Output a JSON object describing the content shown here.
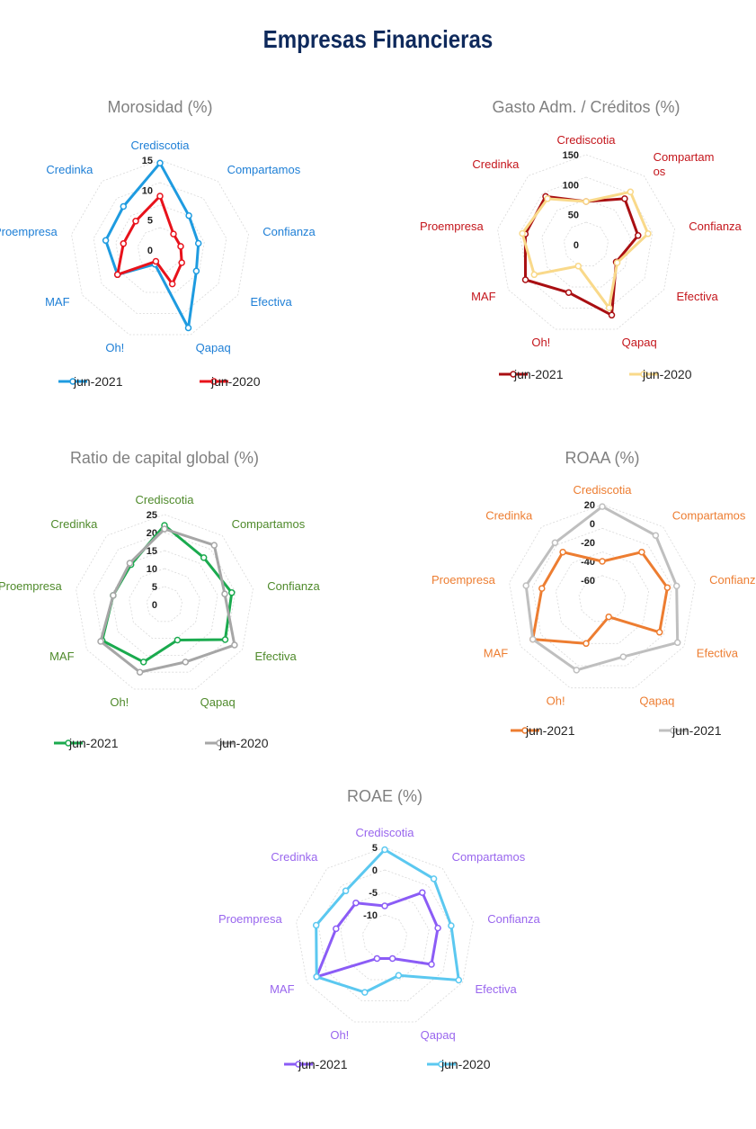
{
  "page_title": "Empresas Financieras",
  "chart_data": [
    {
      "type": "radar",
      "title": "Morosidad (%)",
      "categories": [
        "Crediscotia",
        "Compartamos",
        "Confianza",
        "Efectiva",
        "Qapaq",
        "Oh!",
        "MAF",
        "Proempresa",
        "Credinka"
      ],
      "category_labels": [
        [
          "Crediscotia"
        ],
        [
          "Compartamos"
        ],
        [
          "Confianza"
        ],
        [
          "Efectiva"
        ],
        [
          "Qapaq"
        ],
        [
          "Oh!"
        ],
        [
          "MAF"
        ],
        [
          "Proempresa"
        ],
        [
          "Credinka"
        ]
      ],
      "rmin": 0,
      "rmax": 15,
      "ticks": [
        0,
        5,
        10,
        15
      ],
      "tick_labels": [
        "0",
        "5",
        "10",
        "15"
      ],
      "series": [
        {
          "name": "jun-2021",
          "color": "#1e9be0",
          "values": [
            14.5,
            7.5,
            6.5,
            7.0,
            13.8,
            2.5,
            8.2,
            9.2,
            9.5
          ]
        },
        {
          "name": "jun-2020",
          "color": "#e8121b",
          "values": [
            9.0,
            3.5,
            3.5,
            4.2,
            6.0,
            2.0,
            8.2,
            6.2,
            6.3
          ]
        }
      ],
      "legend": "bottom",
      "label_color": "#1e7fd6"
    },
    {
      "type": "radar",
      "title": "Gasto Adm. / Créditos (%)",
      "categories": [
        "Crediscotia",
        "Compartamos",
        "Confianza",
        "Efectiva",
        "Qapaq",
        "Oh!",
        "MAF",
        "Proempresa",
        "Credinka"
      ],
      "category_labels": [
        [
          "Crediscotia"
        ],
        [
          "Compartam",
          "os"
        ],
        [
          "Confianza"
        ],
        [
          "Efectiva"
        ],
        [
          "Qapaq"
        ],
        [
          "Oh!"
        ],
        [
          "MAF"
        ],
        [
          "Proempresa"
        ],
        [
          "Credinka"
        ]
      ],
      "rmin": 0,
      "rmax": 150,
      "ticks": [
        0,
        50,
        100,
        150
      ],
      "tick_labels": [
        "0",
        "50",
        "100",
        "150"
      ],
      "series": [
        {
          "name": "jun-2021",
          "color": "#a90f12",
          "values": [
            72,
            100,
            88,
            58,
            125,
            85,
            117,
            103,
            105
          ]
        },
        {
          "name": "jun-2020",
          "color": "#f9d98a",
          "values": [
            72,
            115,
            105,
            60,
            112,
            38,
            100,
            108,
            100
          ]
        }
      ],
      "legend": "bottom",
      "label_color": "#c4161c"
    },
    {
      "type": "radar",
      "title": "Ratio de capital global (%)",
      "categories": [
        "Crediscotia",
        "Compartamos",
        "Confianza",
        "Efectiva",
        "Qapaq",
        "Oh!",
        "MAF",
        "Proempresa",
        "Credinka"
      ],
      "category_labels": [
        [
          "Crediscotia"
        ],
        [
          "Compartamos"
        ],
        [
          "Confianza"
        ],
        [
          "Efectiva"
        ],
        [
          "Qapaq"
        ],
        [
          "Oh!"
        ],
        [
          "MAF"
        ],
        [
          "Proempresa"
        ],
        [
          "Credinka"
        ]
      ],
      "rmin": 0,
      "rmax": 25,
      "ticks": [
        0,
        5,
        10,
        15,
        20,
        25
      ],
      "tick_labels": [
        "0",
        "5",
        "10",
        "15",
        "20",
        "25"
      ],
      "series": [
        {
          "name": "jun-2021",
          "color": "#1aaa4e",
          "values": [
            22.0,
            17.0,
            19.0,
            19.5,
            10.5,
            17.0,
            20.0,
            14.5,
            14.5
          ]
        },
        {
          "name": "jun-2020",
          "color": "#a6a6a6",
          "values": [
            21.0,
            21.5,
            17.0,
            22.5,
            17.0,
            20.0,
            20.5,
            14.5,
            15.0
          ]
        }
      ],
      "legend": "bottom",
      "label_color": "#4f8a2b"
    },
    {
      "type": "radar",
      "title": "ROAA (%)",
      "categories": [
        "Crediscotia",
        "Compartamos",
        "Confianza",
        "Efectiva",
        "Qapaq",
        "Oh!",
        "MAF",
        "Proempresa",
        "Credinka"
      ],
      "category_labels": [
        [
          "Crediscotia"
        ],
        [
          "Compartamos"
        ],
        [
          "Confianza"
        ],
        [
          "Efectiva"
        ],
        [
          "Qapaq"
        ],
        [
          "Oh!"
        ],
        [
          "MAF"
        ],
        [
          "Proempresa"
        ],
        [
          "Credinka"
        ]
      ],
      "rmin": -80,
      "rmax": 20,
      "ticks": [
        -60,
        -40,
        -20,
        0,
        20
      ],
      "tick_labels": [
        "-60",
        "-40",
        "-20",
        "0",
        "20"
      ],
      "series": [
        {
          "name": "jun-2021",
          "color": "#ed7d31",
          "values": [
            -40,
            -15,
            -10,
            -10,
            -60,
            -30,
            5,
            -15,
            -15
          ]
        },
        {
          "name": "jun-2021",
          "color": "#bfbfbf",
          "values": [
            18,
            8,
            0,
            12,
            -15,
            0,
            5,
            2,
            -2
          ]
        }
      ],
      "legend": "bottom",
      "label_color": "#ed7d31"
    },
    {
      "type": "radar",
      "title": "ROAE (%)",
      "categories": [
        "Crediscotia",
        "Compartamos",
        "Confianza",
        "Efectiva",
        "Qapaq",
        "Oh!",
        "MAF",
        "Proempresa",
        "Credinka"
      ],
      "category_labels": [
        [
          "Crediscotia"
        ],
        [
          "Compartamos"
        ],
        [
          "Confianza"
        ],
        [
          "Efectiva"
        ],
        [
          "Qapaq"
        ],
        [
          "Oh!"
        ],
        [
          "MAF"
        ],
        [
          "Proempresa"
        ],
        [
          "Credinka"
        ]
      ],
      "rmin": -15,
      "rmax": 5,
      "ticks": [
        -15,
        -10,
        -5,
        0,
        5
      ],
      "tick_labels": [
        "",
        "-10",
        "-5",
        "0",
        "5"
      ],
      "series": [
        {
          "name": "jun-2021",
          "color": "#8b5cf6",
          "values": [
            -8,
            -2,
            -3,
            -3,
            -10,
            -10,
            2.5,
            -4,
            -5
          ]
        },
        {
          "name": "jun-2020",
          "color": "#5bc8f0",
          "values": [
            4.5,
            2,
            0,
            4,
            -6,
            -2,
            2.5,
            0.5,
            -1.5
          ]
        }
      ],
      "legend": "bottom",
      "label_color": "#9966ee"
    }
  ]
}
